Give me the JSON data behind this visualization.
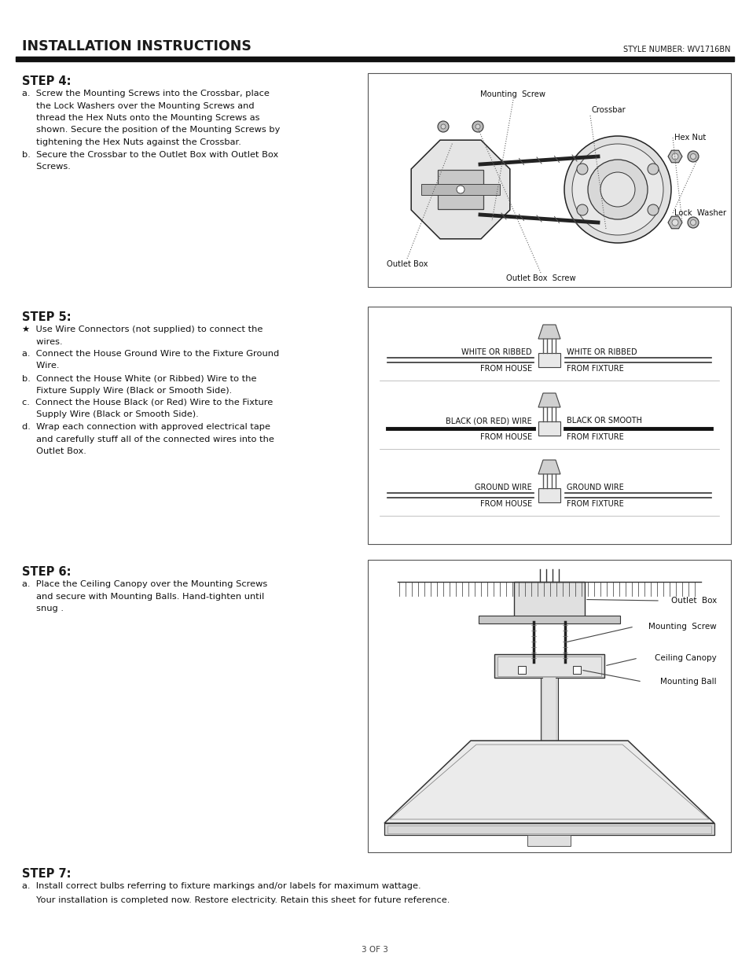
{
  "title": "INSTALLATION INSTRUCTIONS",
  "style_number": "STYLE NUMBER: WV1716BN",
  "page_footer": "3 OF 3",
  "bg_color": "#ffffff",
  "header_bar_color": "#1a1a1a",
  "step4_title": "STEP 4:",
  "step4_lines": [
    "a.  Screw the Mounting Screws into the Crossbar, place",
    "     the Lock Washers over the Mounting Screws and",
    "     thread the Hex Nuts onto the Mounting Screws as",
    "     shown. Secure the position of the Mounting Screws by",
    "     tightening the Hex Nuts against the Crossbar.",
    "b.  Secure the Crossbar to the Outlet Box with Outlet Box",
    "     Screws."
  ],
  "step5_title": "STEP 5:",
  "step5_lines": [
    "★  Use Wire Connectors (not supplied) to connect the",
    "     wires.",
    "a.  Connect the House Ground Wire to the Fixture Ground",
    "     Wire.",
    "b.  Connect the House White (or Ribbed) Wire to the",
    "     Fixture Supply Wire (Black or Smooth Side).",
    "c.  Connect the House Black (or Red) Wire to the Fixture",
    "     Supply Wire (Black or Smooth Side).",
    "d.  Wrap each connection with approved electrical tape",
    "     and carefully stuff all of the connected wires into the",
    "     Outlet Box."
  ],
  "step6_title": "STEP 6:",
  "step6_lines": [
    "a.  Place the Ceiling Canopy over the Mounting Screws",
    "     and secure with Mounting Balls. Hand-tighten until",
    "     snug ."
  ],
  "step7_title": "STEP 7:",
  "step7_line1": "a.  Install correct bulbs referring to fixture markings and/or labels for maximum wattage.",
  "step7_line2": "     Your installation is completed now. Restore electricity. Retain this sheet for future reference."
}
